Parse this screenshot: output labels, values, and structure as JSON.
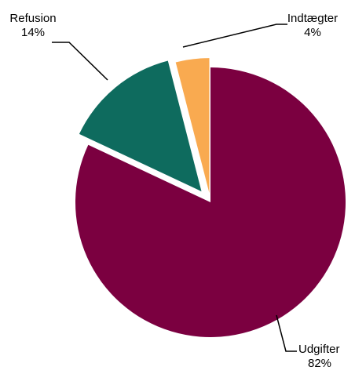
{
  "chart_data": {
    "type": "pie",
    "title": "",
    "exploded": true,
    "slices": [
      {
        "label": "Udgifter",
        "value": 82,
        "value_label": "82%",
        "color": "#7b0040"
      },
      {
        "label": "Refusion",
        "value": 14,
        "value_label": "14%",
        "color": "#0e6b5e"
      },
      {
        "label": "Indtægter",
        "value": 4,
        "value_label": "4%",
        "color": "#f9aa50"
      }
    ]
  }
}
